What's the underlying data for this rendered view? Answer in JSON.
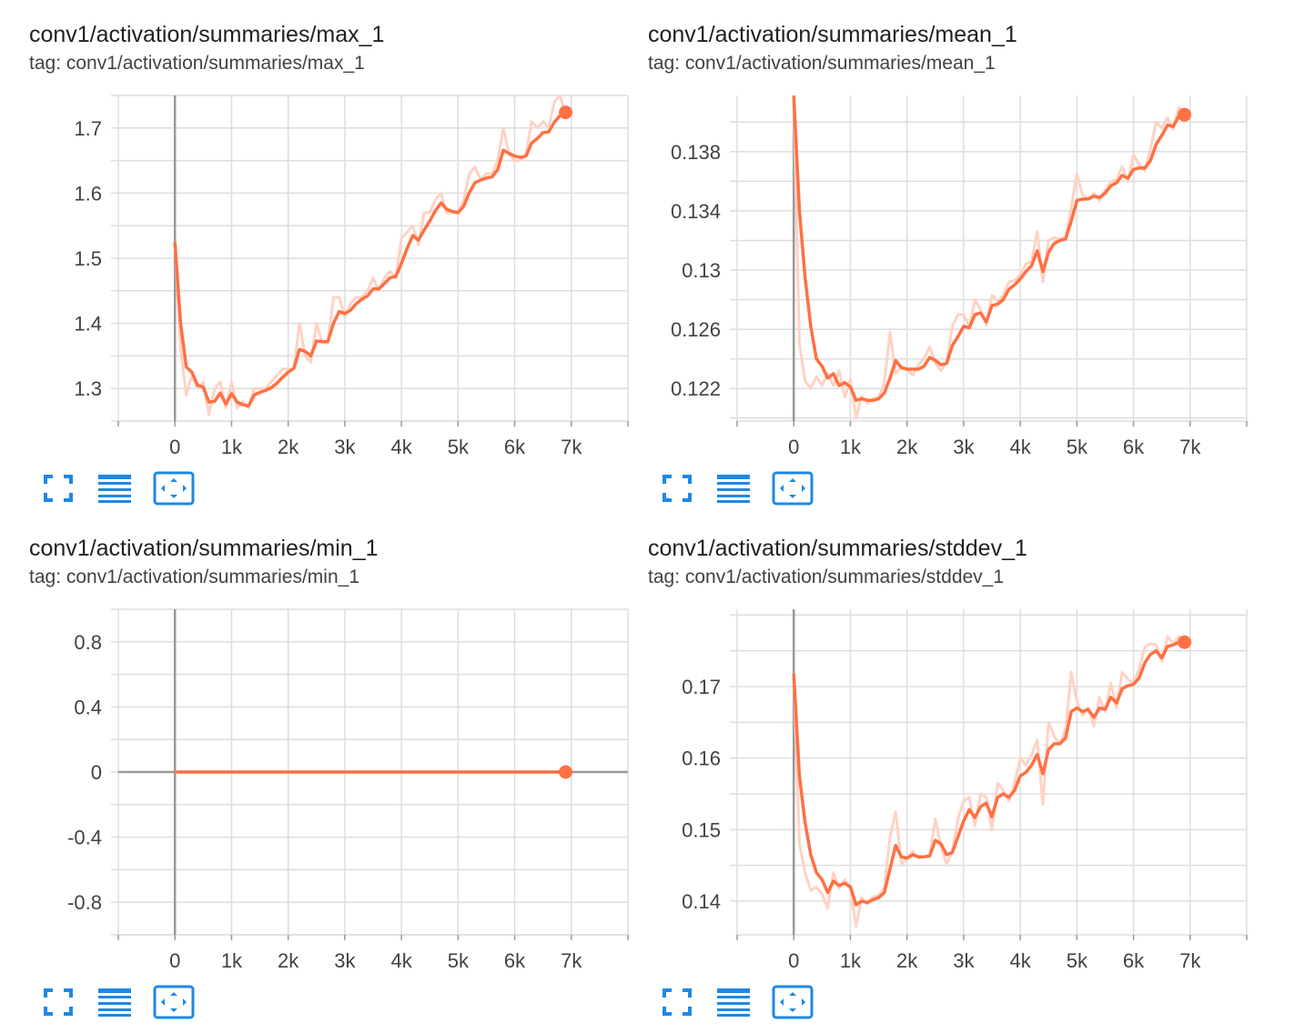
{
  "colors": {
    "line": "#ff7043",
    "raw": "#ffd2c4",
    "grid": "#dddddd",
    "axis": "#999999",
    "button": "#1e88e5"
  },
  "buttons": {
    "expand": "fullscreen-icon",
    "data": "lines-icon",
    "fit": "fit-to-domain-icon"
  },
  "cards": [
    {
      "title": "conv1/activation/summaries/max_1",
      "tag": "tag: conv1/activation/summaries/max_1",
      "chart_data": {
        "type": "line",
        "xlim": [
          -1000,
          8000
        ],
        "ylim": [
          1.25,
          1.75
        ],
        "x_ticks": [
          0,
          1000,
          2000,
          3000,
          4000,
          5000,
          6000,
          7000
        ],
        "x_tick_labels": [
          "0",
          "1k",
          "2k",
          "3k",
          "4k",
          "5k",
          "6k",
          "7k"
        ],
        "y_ticks": [
          1.3,
          1.4,
          1.5,
          1.6,
          1.7
        ],
        "y_tick_labels": [
          "1.3",
          "1.4",
          "1.5",
          "1.6",
          "1.7"
        ],
        "series": [
          {
            "x": [
              0,
              100,
              200,
              300,
              400,
              500,
              600,
              700,
              800,
              900,
              1000,
              1100,
              1200,
              1300,
              1400,
              1500,
              1600,
              1700,
              1800,
              1900,
              2000,
              2100,
              2200,
              2300,
              2400,
              2500,
              2600,
              2700,
              2800,
              2900,
              3000,
              3100,
              3200,
              3300,
              3400,
              3500,
              3600,
              3700,
              3800,
              3900,
              4000,
              4100,
              4200,
              4300,
              4400,
              4500,
              4600,
              4700,
              4800,
              4900,
              5000,
              5100,
              5200,
              5300,
              5400,
              5500,
              5600,
              5700,
              5800,
              5900,
              6000,
              6100,
              6200,
              6300,
              6400,
              6500,
              6600,
              6700,
              6800,
              6900
            ],
            "values": [
              1.525,
              1.4,
              1.333,
              1.325,
              1.305,
              1.302,
              1.279,
              1.28,
              1.293,
              1.276,
              1.292,
              1.279,
              1.275,
              1.273,
              1.29,
              1.294,
              1.297,
              1.301,
              1.308,
              1.317,
              1.325,
              1.331,
              1.36,
              1.357,
              1.35,
              1.373,
              1.372,
              1.372,
              1.4,
              1.418,
              1.415,
              1.42,
              1.43,
              1.437,
              1.442,
              1.453,
              1.453,
              1.461,
              1.47,
              1.472,
              1.492,
              1.515,
              1.535,
              1.528,
              1.543,
              1.557,
              1.573,
              1.585,
              1.575,
              1.572,
              1.57,
              1.58,
              1.601,
              1.616,
              1.62,
              1.623,
              1.625,
              1.636,
              1.666,
              1.661,
              1.657,
              1.655,
              1.657,
              1.677,
              1.684,
              1.693,
              1.694,
              1.709,
              1.719,
              1.724
            ],
            "raw": [
              1.525,
              1.36,
              1.29,
              1.32,
              1.3,
              1.31,
              1.26,
              1.3,
              1.31,
              1.27,
              1.31,
              1.27,
              1.28,
              1.27,
              1.3,
              1.3,
              1.3,
              1.31,
              1.32,
              1.33,
              1.33,
              1.33,
              1.4,
              1.35,
              1.34,
              1.4,
              1.37,
              1.37,
              1.44,
              1.44,
              1.41,
              1.43,
              1.44,
              1.44,
              1.45,
              1.47,
              1.45,
              1.47,
              1.48,
              1.47,
              1.53,
              1.54,
              1.55,
              1.52,
              1.57,
              1.57,
              1.59,
              1.6,
              1.57,
              1.57,
              1.57,
              1.59,
              1.63,
              1.64,
              1.62,
              1.63,
              1.63,
              1.65,
              1.7,
              1.66,
              1.65,
              1.65,
              1.66,
              1.71,
              1.7,
              1.71,
              1.7,
              1.74,
              1.75,
              1.72
            ]
          }
        ]
      }
    },
    {
      "title": "conv1/activation/summaries/mean_1",
      "tag": "tag: conv1/activation/summaries/mean_1",
      "chart_data": {
        "type": "line",
        "xlim": [
          -1000,
          8000
        ],
        "ylim": [
          0.1198,
          0.1418
        ],
        "x_ticks": [
          0,
          1000,
          2000,
          3000,
          4000,
          5000,
          6000,
          7000
        ],
        "x_tick_labels": [
          "0",
          "1k",
          "2k",
          "3k",
          "4k",
          "5k",
          "6k",
          "7k"
        ],
        "y_ticks": [
          0.122,
          0.126,
          0.13,
          0.134,
          0.138
        ],
        "y_tick_labels": [
          "0.122",
          "0.126",
          "0.13",
          "0.134",
          "0.138"
        ],
        "series": [
          {
            "x": [
              0,
              100,
              200,
              300,
              400,
              500,
              600,
              700,
              800,
              900,
              1000,
              1100,
              1200,
              1300,
              1400,
              1500,
              1600,
              1700,
              1800,
              1900,
              2000,
              2100,
              2200,
              2300,
              2400,
              2500,
              2600,
              2700,
              2800,
              2900,
              3000,
              3100,
              3200,
              3300,
              3400,
              3500,
              3600,
              3700,
              3800,
              3900,
              4000,
              4100,
              4200,
              4300,
              4400,
              4500,
              4600,
              4700,
              4800,
              4900,
              5000,
              5100,
              5200,
              5300,
              5400,
              5500,
              5600,
              5700,
              5800,
              5900,
              6000,
              6100,
              6200,
              6300,
              6400,
              6500,
              6600,
              6700,
              6800,
              6900
            ],
            "values": [
              0.1418,
              0.134,
              0.1295,
              0.1262,
              0.124,
              0.1235,
              0.1227,
              0.123,
              0.1222,
              0.1224,
              0.1221,
              0.1212,
              0.1213,
              0.1212,
              0.1212,
              0.1213,
              0.1217,
              0.1227,
              0.1239,
              0.1234,
              0.1233,
              0.1233,
              0.1233,
              0.1235,
              0.1241,
              0.1239,
              0.1236,
              0.1237,
              0.1249,
              0.1255,
              0.1262,
              0.1261,
              0.127,
              0.1271,
              0.1265,
              0.1276,
              0.1277,
              0.128,
              0.1287,
              0.129,
              0.1294,
              0.1299,
              0.1303,
              0.1313,
              0.1299,
              0.1312,
              0.1318,
              0.132,
              0.1321,
              0.1333,
              0.1347,
              0.1348,
              0.1348,
              0.135,
              0.1349,
              0.1352,
              0.1357,
              0.1359,
              0.1364,
              0.1362,
              0.1368,
              0.1369,
              0.1369,
              0.1374,
              0.1385,
              0.1391,
              0.1398,
              0.1397,
              0.1404,
              0.1405
            ],
            "raw": [
              0.1418,
              0.125,
              0.1225,
              0.122,
              0.1228,
              0.1222,
              0.123,
              0.1222,
              0.1232,
              0.1214,
              0.1226,
              0.12,
              0.1215,
              0.121,
              0.1213,
              0.1214,
              0.1224,
              0.1258,
              0.123,
              0.1235,
              0.1233,
              0.1229,
              0.1236,
              0.124,
              0.1248,
              0.1237,
              0.1232,
              0.1238,
              0.1262,
              0.127,
              0.127,
              0.1262,
              0.128,
              0.1273,
              0.1263,
              0.1283,
              0.1279,
              0.1283,
              0.1292,
              0.1293,
              0.1297,
              0.1304,
              0.1306,
              0.1326,
              0.1292,
              0.132,
              0.1322,
              0.1321,
              0.1322,
              0.1342,
              0.1365,
              0.1351,
              0.1348,
              0.1352,
              0.1347,
              0.1354,
              0.136,
              0.1361,
              0.137,
              0.136,
              0.1378,
              0.1371,
              0.1367,
              0.1382,
              0.14,
              0.1396,
              0.1403,
              0.1395,
              0.141,
              0.1405
            ]
          }
        ]
      }
    },
    {
      "title": "conv1/activation/summaries/min_1",
      "tag": "tag: conv1/activation/summaries/min_1",
      "chart_data": {
        "type": "line",
        "xlim": [
          -1000,
          8000
        ],
        "ylim": [
          -1.0,
          1.0
        ],
        "x_ticks": [
          0,
          1000,
          2000,
          3000,
          4000,
          5000,
          6000,
          7000
        ],
        "x_tick_labels": [
          "0",
          "1k",
          "2k",
          "3k",
          "4k",
          "5k",
          "6k",
          "7k"
        ],
        "y_ticks": [
          -0.8,
          -0.4,
          0,
          0.4,
          0.8
        ],
        "y_tick_labels": [
          "-0.8",
          "-0.4",
          "0",
          "0.4",
          "0.8"
        ],
        "series": [
          {
            "x": [
              0,
              6900
            ],
            "values": [
              0,
              0
            ],
            "raw": [
              0,
              0
            ]
          }
        ]
      }
    },
    {
      "title": "conv1/activation/summaries/stddev_1",
      "tag": "tag: conv1/activation/summaries/stddev_1",
      "chart_data": {
        "type": "line",
        "xlim": [
          -1000,
          8000
        ],
        "ylim": [
          0.1353,
          0.1808
        ],
        "x_ticks": [
          0,
          1000,
          2000,
          3000,
          4000,
          5000,
          6000,
          7000
        ],
        "x_tick_labels": [
          "0",
          "1k",
          "2k",
          "3k",
          "4k",
          "5k",
          "6k",
          "7k"
        ],
        "y_ticks": [
          0.14,
          0.15,
          0.16,
          0.17
        ],
        "y_tick_labels": [
          "0.14",
          "0.15",
          "0.16",
          "0.17"
        ],
        "series": [
          {
            "x": [
              0,
              100,
              200,
              300,
              400,
              500,
              600,
              700,
              800,
              900,
              1000,
              1100,
              1200,
              1300,
              1400,
              1500,
              1600,
              1700,
              1800,
              1900,
              2000,
              2100,
              2200,
              2300,
              2400,
              2500,
              2600,
              2700,
              2800,
              2900,
              3000,
              3100,
              3200,
              3300,
              3400,
              3500,
              3600,
              3700,
              3800,
              3900,
              4000,
              4100,
              4200,
              4300,
              4400,
              4500,
              4600,
              4700,
              4800,
              4900,
              5000,
              5100,
              5200,
              5300,
              5400,
              5500,
              5600,
              5700,
              5800,
              5900,
              6000,
              6100,
              6200,
              6300,
              6400,
              6500,
              6600,
              6700,
              6800,
              6900
            ],
            "values": [
              0.1718,
              0.1575,
              0.151,
              0.1465,
              0.144,
              0.143,
              0.1412,
              0.1428,
              0.1422,
              0.1425,
              0.142,
              0.1395,
              0.14,
              0.1398,
              0.1402,
              0.1405,
              0.1412,
              0.1445,
              0.1478,
              0.1462,
              0.146,
              0.1465,
              0.1462,
              0.1462,
              0.1463,
              0.1485,
              0.148,
              0.1465,
              0.1468,
              0.149,
              0.1512,
              0.1528,
              0.1517,
              0.1532,
              0.1537,
              0.1518,
              0.1545,
              0.155,
              0.1545,
              0.1555,
              0.1575,
              0.158,
              0.159,
              0.1605,
              0.1578,
              0.1612,
              0.162,
              0.162,
              0.1628,
              0.1665,
              0.167,
              0.1665,
              0.1668,
              0.1657,
              0.167,
              0.1668,
              0.1685,
              0.1677,
              0.1697,
              0.1701,
              0.1703,
              0.1712,
              0.1733,
              0.1745,
              0.175,
              0.174,
              0.1756,
              0.1758,
              0.1762,
              0.1762
            ],
            "raw": [
              0.1718,
              0.148,
              0.144,
              0.1415,
              0.142,
              0.141,
              0.139,
              0.144,
              0.1418,
              0.143,
              0.1418,
              0.1365,
              0.1405,
              0.1396,
              0.1406,
              0.1408,
              0.142,
              0.149,
              0.1525,
              0.1452,
              0.146,
              0.147,
              0.146,
              0.1462,
              0.1465,
              0.1515,
              0.1475,
              0.1452,
              0.147,
              0.1515,
              0.154,
              0.1545,
              0.1505,
              0.155,
              0.1545,
              0.15,
              0.1565,
              0.1555,
              0.154,
              0.1565,
              0.16,
              0.159,
              0.1605,
              0.1625,
              0.1535,
              0.165,
              0.163,
              0.162,
              0.164,
              0.172,
              0.168,
              0.166,
              0.167,
              0.1645,
              0.1685,
              0.1665,
              0.1705,
              0.167,
              0.172,
              0.171,
              0.1705,
              0.1725,
              0.1755,
              0.176,
              0.1758,
              0.1735,
              0.177,
              0.176,
              0.177,
              0.1762
            ]
          }
        ]
      }
    }
  ]
}
